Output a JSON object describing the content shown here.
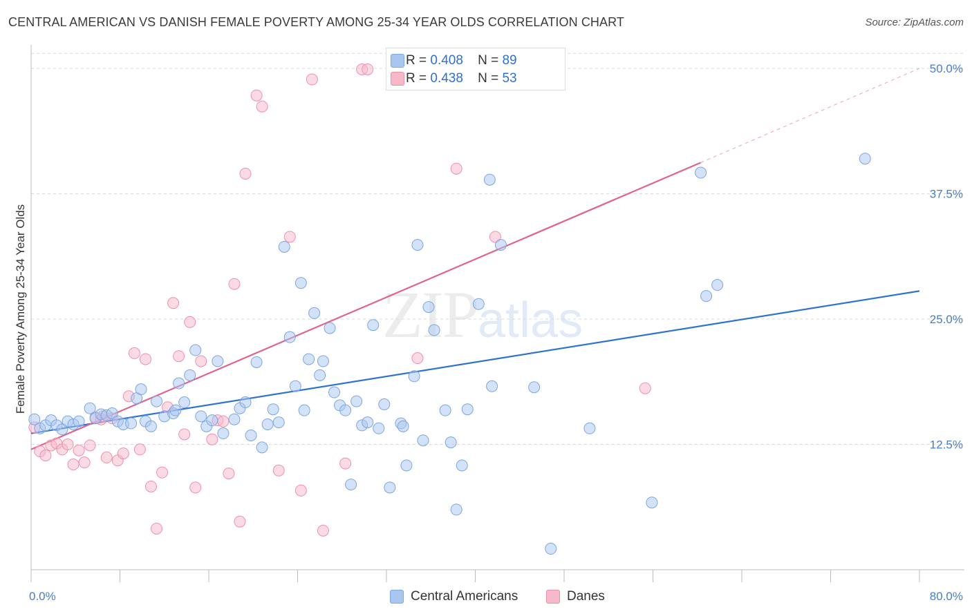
{
  "title": "CENTRAL AMERICAN VS DANISH FEMALE POVERTY AMONG 25-34 YEAR OLDS CORRELATION CHART",
  "source": "Source: ZipAtlas.com",
  "watermark": {
    "zip": "ZIP",
    "atlas": "atlas"
  },
  "colors": {
    "central_american": "#a9c6f0",
    "central_american_stroke": "#7aa6e2",
    "danes": "#f6b7c9",
    "danes_stroke": "#ee8fae",
    "blue_line": "#2f72d0",
    "pink_line": "#e0638e",
    "accent_text": "#4a7cc4"
  },
  "legend": {
    "series1": {
      "r_label": "R =",
      "r_value": "0.408",
      "n_label": "N =",
      "n_value": "89"
    },
    "series2": {
      "r_label": "R =",
      "r_value": "0.438",
      "n_label": "N =",
      "n_value": "53"
    }
  },
  "bottom_legend": {
    "series1": "Central Americans",
    "series2": "Danes"
  },
  "chart_data": {
    "type": "scatter",
    "title": "CENTRAL AMERICAN VS DANISH FEMALE POVERTY AMONG 25-34 YEAR OLDS CORRELATION CHART",
    "xlabel": "",
    "ylabel": "Female Poverty Among 25-34 Year Olds",
    "xlim": [
      0,
      80
    ],
    "ylim": [
      0,
      52
    ],
    "x_tick_labels": [
      "0.0%",
      "80.0%"
    ],
    "y_ticks": [
      12.5,
      25.0,
      37.5,
      50.0
    ],
    "y_tick_labels": [
      "12.5%",
      "25.0%",
      "37.5%",
      "50.0%"
    ],
    "grid": true,
    "legend_position": "top-center",
    "series": [
      {
        "name": "Central Americans",
        "r": 0.408,
        "n": 89,
        "trend": {
          "x": [
            0,
            80
          ],
          "y": [
            13.6,
            27.8
          ]
        },
        "points": [
          [
            0.3,
            15.0
          ],
          [
            0.8,
            14.1
          ],
          [
            1.3,
            14.4
          ],
          [
            1.8,
            14.9
          ],
          [
            2.3,
            14.4
          ],
          [
            2.8,
            14.0
          ],
          [
            3.3,
            14.8
          ],
          [
            3.8,
            14.5
          ],
          [
            4.3,
            14.8
          ],
          [
            5.3,
            16.1
          ],
          [
            5.8,
            15.1
          ],
          [
            6.3,
            15.5
          ],
          [
            6.8,
            15.4
          ],
          [
            7.3,
            15.6
          ],
          [
            7.8,
            14.8
          ],
          [
            8.3,
            14.5
          ],
          [
            9.5,
            17.1
          ],
          [
            9.9,
            18.0
          ],
          [
            10.3,
            14.8
          ],
          [
            10.8,
            14.3
          ],
          [
            11.3,
            16.8
          ],
          [
            12.0,
            15.3
          ],
          [
            12.8,
            15.6
          ],
          [
            13.3,
            18.6
          ],
          [
            13.8,
            16.7
          ],
          [
            14.3,
            19.4
          ],
          [
            14.8,
            21.9
          ],
          [
            15.3,
            15.3
          ],
          [
            15.8,
            14.3
          ],
          [
            16.3,
            14.9
          ],
          [
            16.8,
            20.8
          ],
          [
            17.3,
            13.6
          ],
          [
            18.3,
            15.0
          ],
          [
            18.8,
            16.1
          ],
          [
            19.3,
            16.7
          ],
          [
            19.8,
            13.4
          ],
          [
            20.3,
            20.7
          ],
          [
            20.8,
            12.2
          ],
          [
            21.3,
            14.5
          ],
          [
            21.8,
            16.0
          ],
          [
            22.3,
            14.7
          ],
          [
            22.8,
            32.2
          ],
          [
            23.3,
            23.2
          ],
          [
            23.8,
            18.3
          ],
          [
            24.3,
            28.6
          ],
          [
            24.6,
            15.9
          ],
          [
            25.0,
            21.0
          ],
          [
            25.5,
            25.6
          ],
          [
            26.0,
            19.4
          ],
          [
            26.3,
            20.8
          ],
          [
            26.9,
            24.1
          ],
          [
            27.3,
            17.7
          ],
          [
            27.8,
            16.4
          ],
          [
            28.3,
            15.9
          ],
          [
            28.8,
            8.5
          ],
          [
            29.3,
            16.8
          ],
          [
            29.8,
            14.4
          ],
          [
            30.3,
            14.7
          ],
          [
            30.8,
            24.4
          ],
          [
            31.3,
            14.1
          ],
          [
            31.8,
            16.5
          ],
          [
            32.3,
            8.2
          ],
          [
            33.3,
            14.6
          ],
          [
            33.5,
            14.3
          ],
          [
            33.8,
            10.4
          ],
          [
            34.5,
            19.3
          ],
          [
            34.8,
            32.4
          ],
          [
            35.3,
            12.9
          ],
          [
            35.8,
            26.2
          ],
          [
            36.3,
            23.9
          ],
          [
            37.3,
            15.9
          ],
          [
            37.8,
            12.7
          ],
          [
            38.3,
            6.0
          ],
          [
            38.8,
            10.4
          ],
          [
            39.3,
            16.0
          ],
          [
            40.3,
            26.5
          ],
          [
            41.3,
            38.9
          ],
          [
            41.5,
            18.3
          ],
          [
            42.3,
            32.4
          ],
          [
            45.3,
            18.2
          ],
          [
            46.8,
            2.1
          ],
          [
            50.3,
            14.1
          ],
          [
            55.9,
            6.7
          ],
          [
            60.3,
            39.6
          ],
          [
            60.8,
            27.3
          ],
          [
            61.8,
            28.4
          ],
          [
            75.1,
            41.0
          ],
          [
            13.0,
            15.9
          ],
          [
            9.0,
            14.6
          ]
        ]
      },
      {
        "name": "Danes",
        "r": 0.438,
        "n": 53,
        "trend": {
          "x": [
            0,
            60.3
          ],
          "y": [
            12.0,
            40.6
          ]
        },
        "trend_extension": {
          "x": [
            60.3,
            80
          ],
          "y": [
            40.6,
            50.0
          ]
        },
        "points": [
          [
            0.3,
            14.2
          ],
          [
            0.8,
            11.8
          ],
          [
            1.3,
            11.4
          ],
          [
            1.8,
            12.4
          ],
          [
            2.3,
            12.6
          ],
          [
            2.8,
            12.0
          ],
          [
            3.3,
            12.5
          ],
          [
            3.8,
            10.5
          ],
          [
            4.3,
            11.9
          ],
          [
            4.8,
            10.7
          ],
          [
            5.3,
            12.4
          ],
          [
            5.8,
            15.2
          ],
          [
            6.3,
            15.0
          ],
          [
            6.8,
            11.2
          ],
          [
            7.3,
            15.1
          ],
          [
            7.8,
            10.9
          ],
          [
            8.3,
            11.6
          ],
          [
            8.8,
            17.3
          ],
          [
            9.3,
            21.6
          ],
          [
            9.8,
            12.0
          ],
          [
            10.3,
            21.0
          ],
          [
            10.8,
            8.3
          ],
          [
            11.3,
            4.1
          ],
          [
            11.8,
            9.7
          ],
          [
            12.3,
            16.2
          ],
          [
            12.8,
            26.6
          ],
          [
            13.3,
            21.3
          ],
          [
            13.8,
            13.5
          ],
          [
            14.3,
            24.7
          ],
          [
            14.8,
            8.2
          ],
          [
            15.3,
            20.8
          ],
          [
            16.3,
            13.0
          ],
          [
            16.8,
            14.9
          ],
          [
            17.3,
            14.8
          ],
          [
            17.8,
            9.6
          ],
          [
            18.3,
            28.5
          ],
          [
            18.8,
            4.8
          ],
          [
            19.3,
            39.5
          ],
          [
            20.3,
            47.3
          ],
          [
            20.8,
            46.2
          ],
          [
            22.3,
            9.9
          ],
          [
            23.3,
            33.2
          ],
          [
            24.3,
            7.9
          ],
          [
            25.3,
            48.9
          ],
          [
            26.3,
            3.9
          ],
          [
            28.3,
            10.6
          ],
          [
            29.8,
            49.9
          ],
          [
            30.3,
            49.9
          ],
          [
            34.8,
            21.1
          ],
          [
            38.3,
            40.0
          ],
          [
            41.8,
            33.2
          ],
          [
            55.3,
            18.1
          ],
          [
            6.5,
            15.3
          ]
        ]
      }
    ]
  }
}
